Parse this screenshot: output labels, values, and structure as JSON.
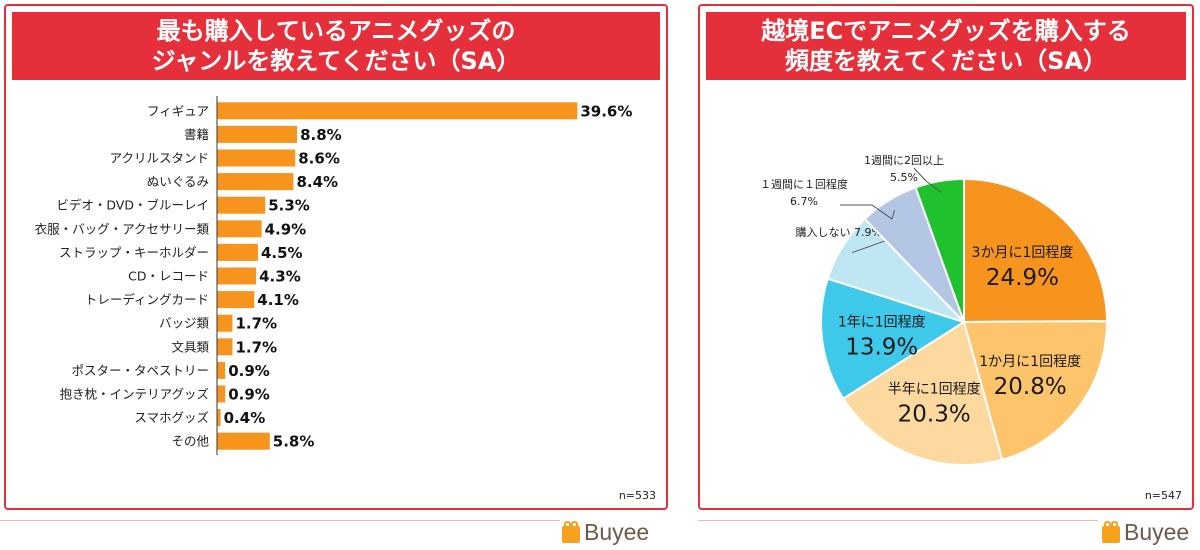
{
  "left": {
    "title_line1": "最も購入しているアニメグッズの",
    "title_line2": "ジャンルを教えてください（SA）",
    "n": "n=533"
  },
  "right": {
    "title_line1": "越境ECでアニメグッズを購入する",
    "title_line2": "頻度を教えてください（SA）",
    "n": "n=547"
  },
  "logo_text": "Buyee",
  "colors": {
    "bar": "#f7941d",
    "title_bg": "#e5303b",
    "border": "#e5303b"
  },
  "chart_data": [
    {
      "type": "bar",
      "orientation": "horizontal",
      "categories": [
        "フィギュア",
        "書籍",
        "アクリルスタンド",
        "ぬいぐるみ",
        "ビデオ・DVD・ブルーレイ",
        "衣服・バッグ・アクセサリー類",
        "ストラップ・キーホルダー",
        "CD・レコード",
        "トレーディングカード",
        "バッジ類",
        "文具類",
        "ポスター・タペストリー",
        "抱き枕・インテリアグッズ",
        "スマホグッズ",
        "その他"
      ],
      "values": [
        39.6,
        8.8,
        8.6,
        8.4,
        5.3,
        4.9,
        4.5,
        4.3,
        4.1,
        1.7,
        1.7,
        0.9,
        0.9,
        0.4,
        5.8
      ],
      "value_labels": [
        "39.6%",
        "8.8%",
        "8.6%",
        "8.4%",
        "5.3%",
        "4.9%",
        "4.5%",
        "4.3%",
        "4.1%",
        "1.7%",
        "1.7%",
        "0.9%",
        "0.9%",
        "0.4%",
        "5.8%"
      ],
      "xlim": [
        0,
        40
      ],
      "grid": false,
      "legend": "none"
    },
    {
      "type": "pie",
      "start": "top",
      "direction": "clockwise",
      "slices": [
        {
          "label": "3か月に1回程度",
          "value_label": "24.9%",
          "value": 24.9,
          "color": "#f7941d",
          "placement": "inside"
        },
        {
          "label": "1か月に1回程度",
          "value_label": "20.8%",
          "value": 20.8,
          "color": "#fdc46c",
          "placement": "inside"
        },
        {
          "label": "半年に1回程度",
          "value_label": "20.3%",
          "value": 20.3,
          "color": "#fdd9a0",
          "placement": "inside"
        },
        {
          "label": "1年に1回程度",
          "value_label": "13.9%",
          "value": 13.9,
          "color": "#3ec9ea",
          "placement": "inside"
        },
        {
          "label": "購入しない",
          "value_label": "7.9%",
          "value": 7.9,
          "color": "#bfe6f3",
          "placement": "outside"
        },
        {
          "label": "１週間に１回程度",
          "value_label": "6.7%",
          "value": 6.7,
          "color": "#b3c6e4",
          "placement": "outside"
        },
        {
          "label": "1週間に2回以上",
          "value_label": "5.5%",
          "value": 5.5,
          "color": "#1fc12e",
          "placement": "outside"
        }
      ],
      "legend": "none"
    }
  ]
}
